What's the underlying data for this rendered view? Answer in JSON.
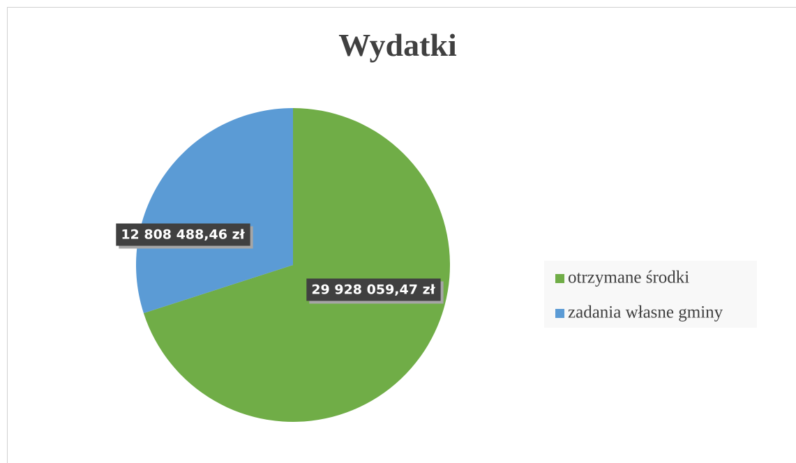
{
  "chart_data": {
    "type": "pie",
    "title": "Wydatki",
    "categories": [
      "otrzymane środki",
      "zadania własne gminy"
    ],
    "values": [
      29928059.47,
      12808488.46
    ],
    "value_labels": [
      "29 928 059,47 zł",
      "12 808 488,46 zł"
    ],
    "colors": [
      "#70ad47",
      "#5b9bd5"
    ],
    "legend": "right"
  }
}
